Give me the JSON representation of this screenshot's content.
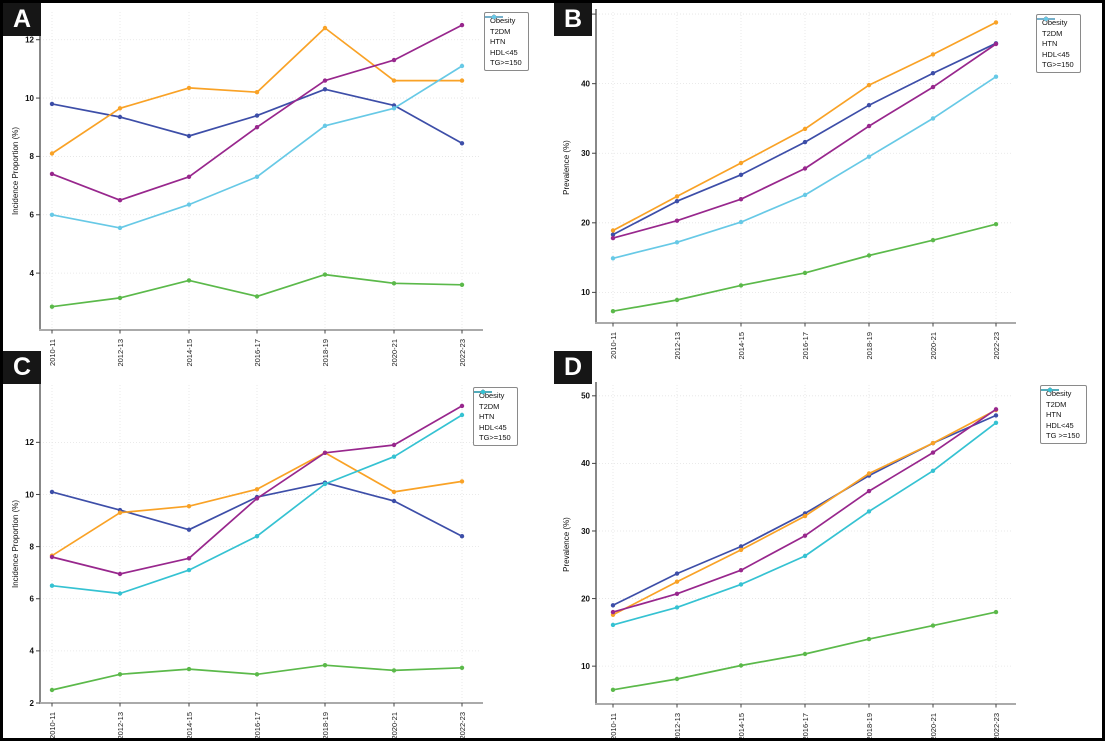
{
  "figure": {
    "background": "#ffffff",
    "border_color": "#000000",
    "panel_labels": [
      "A",
      "B",
      "C",
      "D"
    ]
  },
  "chart_data": [
    {
      "panel_label": "A",
      "type": "line",
      "title": "",
      "xlabel": "",
      "ylabel": "Incidence Proportion (%)",
      "categories": [
        "2010-11",
        "2012-13",
        "2014-15",
        "2016-17",
        "2018-19",
        "2020-21",
        "2022-23"
      ],
      "ylim": [
        2.05,
        12.95
      ],
      "yticks": [
        4,
        6,
        8,
        10,
        12
      ],
      "grid": true,
      "legend_position": "top-right",
      "series": [
        {
          "name": "Obesity",
          "color": "#3D4EA8",
          "values": [
            9.8,
            9.35,
            8.7,
            9.4,
            10.3,
            9.75,
            8.45
          ]
        },
        {
          "name": "T2DM",
          "color": "#5BB94A",
          "values": [
            2.85,
            3.15,
            3.75,
            3.2,
            3.95,
            3.65,
            3.6
          ]
        },
        {
          "name": "HTN",
          "color": "#F9A226",
          "values": [
            8.1,
            9.65,
            10.35,
            10.2,
            12.4,
            10.6,
            10.6
          ]
        },
        {
          "name": "HDL<45",
          "color": "#98278D",
          "values": [
            7.4,
            6.5,
            7.3,
            9.0,
            10.6,
            11.3,
            12.5
          ]
        },
        {
          "name": "TG>=150",
          "color": "#67C9E6",
          "values": [
            6.0,
            5.55,
            6.35,
            7.3,
            9.05,
            9.65,
            11.1
          ]
        }
      ]
    },
    {
      "panel_label": "B",
      "type": "line",
      "title": "",
      "xlabel": "",
      "ylabel": "Prevalence (%)",
      "categories": [
        "2010-11",
        "2012-13",
        "2014-15",
        "2016-17",
        "2018-19",
        "2020-21",
        "2022-23"
      ],
      "ylim": [
        5.6,
        50.3
      ],
      "yticks": [
        10,
        20,
        30,
        40,
        50
      ],
      "grid": true,
      "legend_position": "top-right",
      "series": [
        {
          "name": "Obesity",
          "color": "#3D4EA8",
          "values": [
            18.3,
            23.1,
            26.9,
            31.6,
            36.9,
            41.5,
            45.8
          ]
        },
        {
          "name": "T2DM",
          "color": "#5BB94A",
          "values": [
            7.3,
            8.9,
            11.0,
            12.8,
            15.3,
            17.5,
            19.8
          ]
        },
        {
          "name": "HTN",
          "color": "#F9A226",
          "values": [
            18.9,
            23.8,
            28.6,
            33.5,
            39.8,
            44.2,
            48.8
          ]
        },
        {
          "name": "HDL<45",
          "color": "#98278D",
          "values": [
            17.8,
            20.3,
            23.4,
            27.8,
            33.9,
            39.5,
            45.7
          ]
        },
        {
          "name": "TG>=150",
          "color": "#67C9E6",
          "values": [
            14.9,
            17.2,
            20.1,
            24.0,
            29.5,
            35.0,
            41.0
          ]
        }
      ]
    },
    {
      "panel_label": "C",
      "type": "line",
      "title": "",
      "xlabel": "",
      "ylabel": "Incidence Proportion (%)",
      "categories": [
        "2010-11",
        "2012-13",
        "2014-15",
        "2016-17",
        "2018-19",
        "2020-21",
        "2022-23"
      ],
      "ylim": [
        2.0,
        14.2
      ],
      "yticks": [
        2,
        4,
        6,
        8,
        10,
        12
      ],
      "grid": true,
      "legend_position": "top-right",
      "series": [
        {
          "name": "Obesity",
          "color": "#3D4EA8",
          "values": [
            10.1,
            9.4,
            8.65,
            9.9,
            10.45,
            9.75,
            8.4
          ]
        },
        {
          "name": "T2DM",
          "color": "#5BB94A",
          "values": [
            2.5,
            3.1,
            3.3,
            3.1,
            3.45,
            3.25,
            3.35
          ]
        },
        {
          "name": "HTN",
          "color": "#F9A226",
          "values": [
            7.65,
            9.3,
            9.55,
            10.2,
            11.6,
            10.1,
            10.5
          ]
        },
        {
          "name": "HDL<45",
          "color": "#98278D",
          "values": [
            7.6,
            6.95,
            7.55,
            9.85,
            11.6,
            11.9,
            13.4
          ]
        },
        {
          "name": "TG>=150",
          "color": "#35C2D2",
          "values": [
            6.5,
            6.2,
            7.1,
            8.4,
            10.4,
            11.45,
            13.05
          ]
        }
      ]
    },
    {
      "panel_label": "D",
      "type": "line",
      "title": "",
      "xlabel": "",
      "ylabel": "Prevalence (%)",
      "categories": [
        "2010-11",
        "2012-13",
        "2014-15",
        "2016-17",
        "2018-19",
        "2020-21",
        "2022-23"
      ],
      "ylim": [
        4.4,
        51.6
      ],
      "yticks": [
        10,
        20,
        30,
        40,
        50
      ],
      "grid": true,
      "legend_position": "top-right",
      "series": [
        {
          "name": "Obesity",
          "color": "#3D4EA8",
          "values": [
            19.0,
            23.7,
            27.7,
            32.6,
            38.2,
            43.0,
            47.1
          ]
        },
        {
          "name": "T2DM",
          "color": "#5BB94A",
          "values": [
            6.5,
            8.1,
            10.1,
            11.8,
            14.0,
            16.0,
            18.0
          ]
        },
        {
          "name": "HTN",
          "color": "#F9A226",
          "values": [
            17.6,
            22.5,
            27.2,
            32.2,
            38.5,
            43.0,
            47.9
          ]
        },
        {
          "name": "HDL<45",
          "color": "#98278D",
          "values": [
            18.0,
            20.7,
            24.2,
            29.3,
            35.9,
            41.6,
            48.0
          ]
        },
        {
          "name": "TG >=150",
          "color": "#35C2D2",
          "values": [
            16.1,
            18.7,
            22.1,
            26.3,
            32.9,
            38.9,
            46.0
          ]
        }
      ]
    }
  ]
}
